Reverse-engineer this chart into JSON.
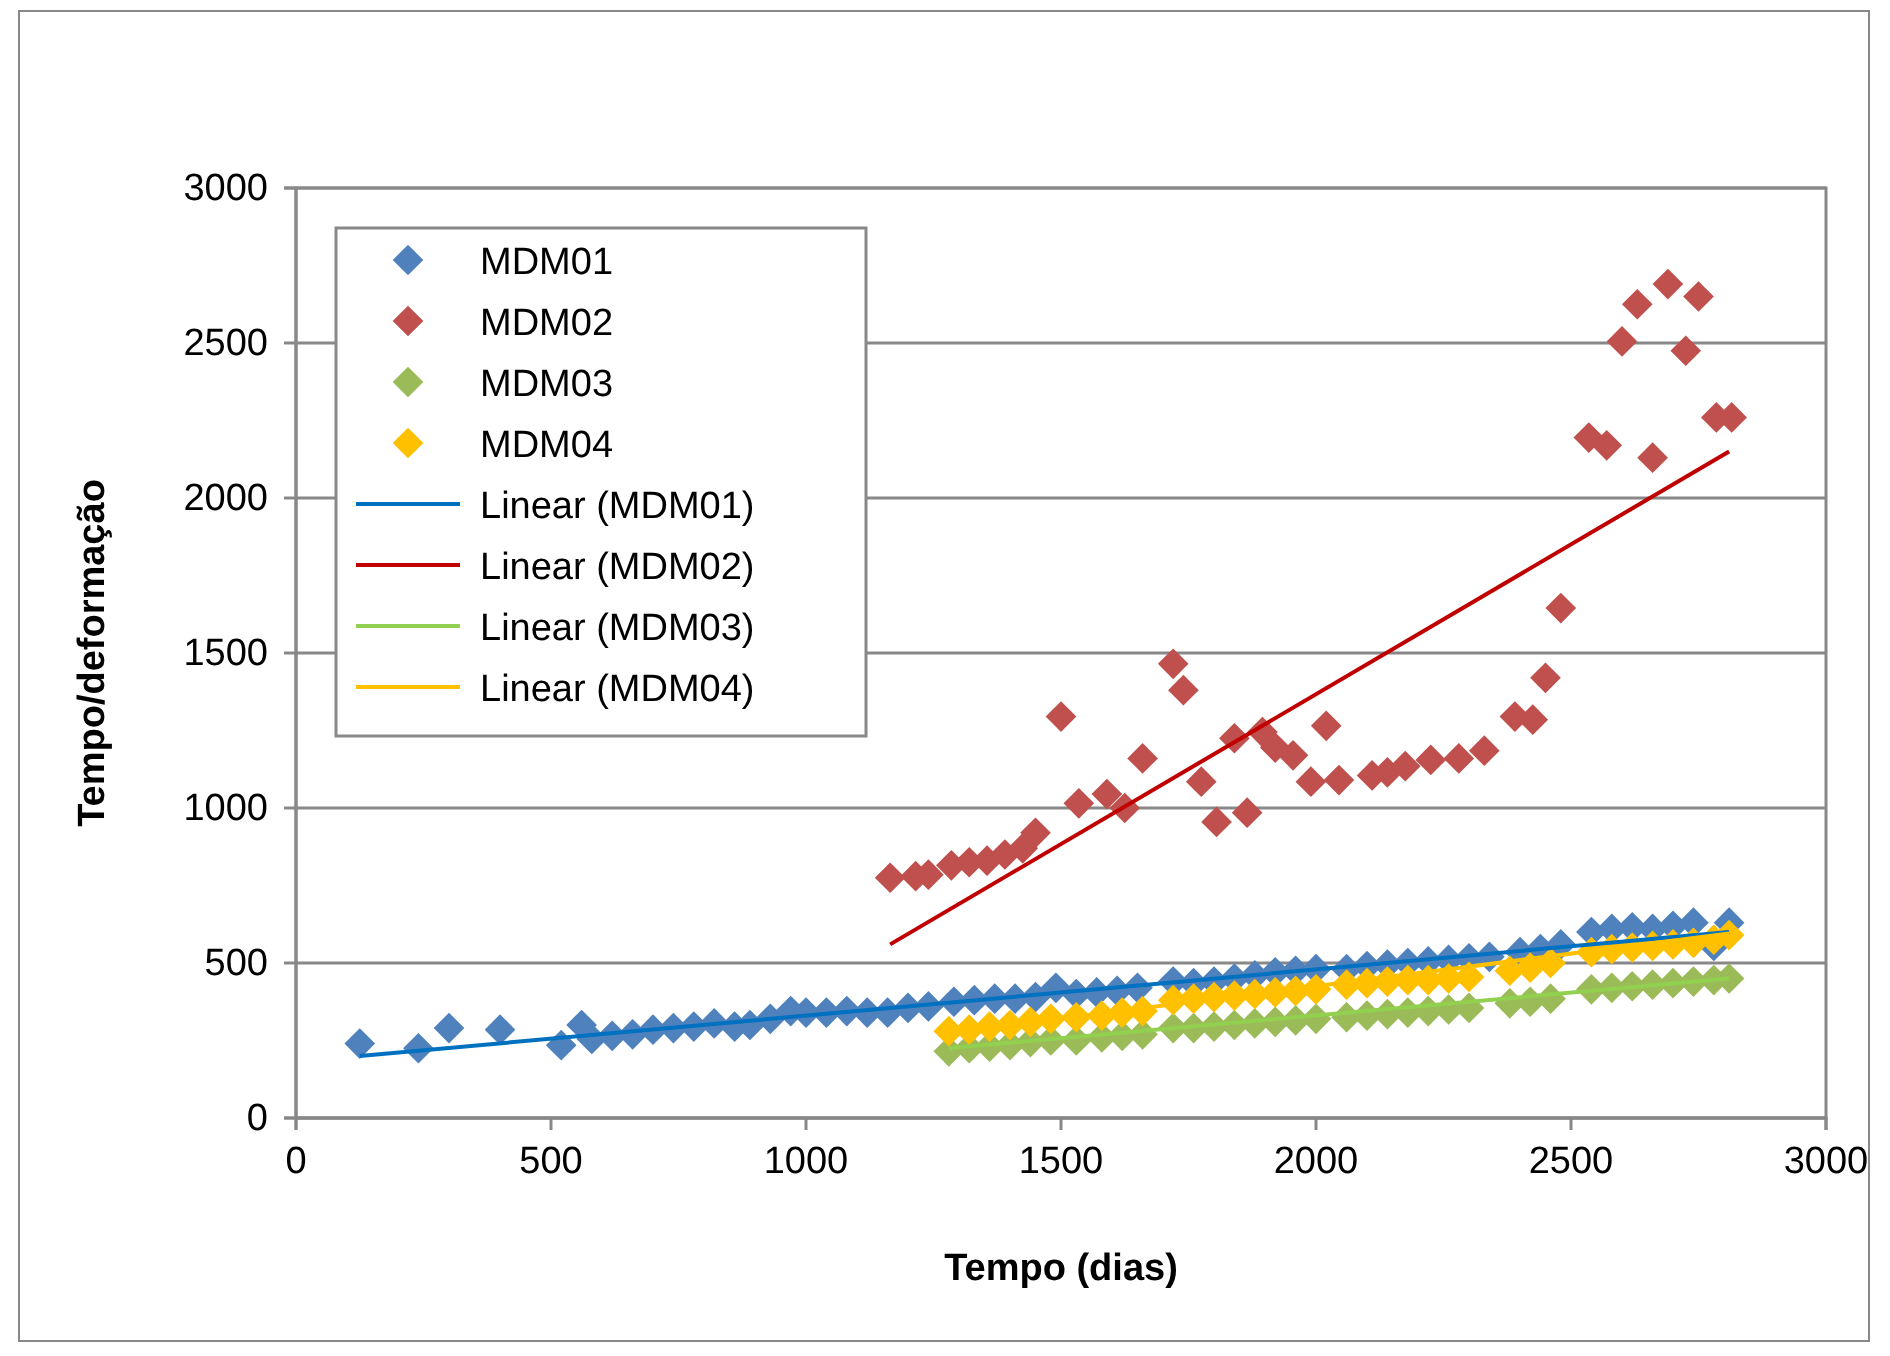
{
  "chart_data": {
    "type": "scatter",
    "xlabel": "Tempo (dias)",
    "ylabel": "Tempo/deformação",
    "xlim": [
      0,
      3000
    ],
    "ylim": [
      0,
      3000
    ],
    "xticks": [
      0,
      500,
      1000,
      1500,
      2000,
      2500,
      3000
    ],
    "yticks": [
      0,
      500,
      1000,
      1500,
      2000,
      2500,
      3000
    ],
    "grid": "y",
    "legend": "top left",
    "marker": "diamond",
    "series": [
      {
        "name": "MDM01",
        "color": "#4f81bd",
        "x": [
          125,
          240,
          300,
          400,
          520,
          560,
          580,
          620,
          660,
          700,
          740,
          780,
          820,
          860,
          890,
          930,
          970,
          1000,
          1040,
          1080,
          1120,
          1160,
          1200,
          1240,
          1290,
          1330,
          1370,
          1410,
          1450,
          1490,
          1530,
          1570,
          1610,
          1650,
          1720,
          1760,
          1800,
          1840,
          1880,
          1920,
          1960,
          2000,
          2060,
          2100,
          2140,
          2180,
          2220,
          2260,
          2300,
          2340,
          2400,
          2440,
          2480,
          2540,
          2580,
          2620,
          2660,
          2700,
          2740,
          2780,
          2810
        ],
        "values": [
          240,
          225,
          290,
          285,
          235,
          300,
          255,
          265,
          270,
          285,
          290,
          295,
          305,
          295,
          300,
          320,
          345,
          340,
          340,
          345,
          340,
          340,
          355,
          360,
          375,
          380,
          385,
          385,
          390,
          420,
          400,
          405,
          410,
          420,
          440,
          435,
          440,
          450,
          460,
          470,
          475,
          480,
          480,
          490,
          495,
          500,
          505,
          510,
          515,
          520,
          535,
          545,
          560,
          600,
          610,
          615,
          610,
          620,
          630,
          555,
          630
        ]
      },
      {
        "name": "MDM02",
        "color": "#c0504d",
        "x": [
          1165,
          1215,
          1240,
          1285,
          1320,
          1355,
          1390,
          1425,
          1450,
          1500,
          1535,
          1590,
          1625,
          1660,
          1720,
          1740,
          1775,
          1805,
          1840,
          1865,
          1895,
          1920,
          1955,
          1990,
          2020,
          2045,
          2110,
          2140,
          2175,
          2225,
          2280,
          2330,
          2390,
          2425,
          2450,
          2480,
          2535,
          2570,
          2600,
          2630,
          2660,
          2690,
          2725,
          2750,
          2785,
          2815
        ],
        "values": [
          775,
          780,
          785,
          815,
          825,
          830,
          850,
          870,
          920,
          1295,
          1015,
          1045,
          1000,
          1160,
          1465,
          1380,
          1085,
          955,
          1225,
          985,
          1245,
          1195,
          1170,
          1085,
          1265,
          1090,
          1105,
          1115,
          1135,
          1155,
          1160,
          1185,
          1295,
          1285,
          1420,
          1645,
          2195,
          2170,
          2505,
          2625,
          2130,
          2690,
          2475,
          2650,
          2260,
          2260
        ]
      },
      {
        "name": "MDM03",
        "color": "#9bbb59",
        "x": [
          1280,
          1320,
          1360,
          1400,
          1440,
          1480,
          1530,
          1580,
          1620,
          1660,
          1720,
          1760,
          1800,
          1840,
          1880,
          1920,
          1960,
          2000,
          2060,
          2100,
          2140,
          2180,
          2220,
          2260,
          2300,
          2380,
          2420,
          2460,
          2540,
          2580,
          2620,
          2660,
          2700,
          2740,
          2780,
          2810
        ],
        "values": [
          215,
          225,
          230,
          235,
          245,
          250,
          250,
          260,
          265,
          270,
          290,
          290,
          295,
          300,
          305,
          310,
          315,
          320,
          325,
          330,
          335,
          340,
          345,
          350,
          355,
          370,
          375,
          385,
          415,
          420,
          425,
          430,
          435,
          440,
          445,
          450
        ]
      },
      {
        "name": "MDM04",
        "color": "#ffc000",
        "x": [
          1280,
          1320,
          1360,
          1400,
          1440,
          1480,
          1530,
          1580,
          1620,
          1660,
          1720,
          1760,
          1800,
          1840,
          1880,
          1920,
          1960,
          2000,
          2060,
          2100,
          2140,
          2180,
          2220,
          2260,
          2300,
          2380,
          2420,
          2460,
          2540,
          2580,
          2620,
          2660,
          2700,
          2740,
          2780,
          2810
        ],
        "values": [
          280,
          285,
          295,
          300,
          310,
          320,
          325,
          330,
          340,
          345,
          380,
          385,
          390,
          395,
          400,
          405,
          410,
          415,
          430,
          435,
          440,
          445,
          445,
          450,
          455,
          475,
          485,
          500,
          535,
          545,
          550,
          555,
          560,
          565,
          575,
          590
        ]
      },
      {
        "name": "Linear (MDM01)",
        "type": "line",
        "marker": "none",
        "color": "#0070c0",
        "x": [
          125,
          2810
        ],
        "values": [
          200,
          600
        ]
      },
      {
        "name": "Linear (MDM02)",
        "type": "line",
        "marker": "none",
        "color": "#c00000",
        "x": [
          1165,
          2810
        ],
        "values": [
          560,
          2150
        ]
      },
      {
        "name": "Linear (MDM03)",
        "type": "line",
        "marker": "none",
        "color": "#92d050",
        "x": [
          1280,
          2810
        ],
        "values": [
          225,
          450
        ]
      },
      {
        "name": "Linear (MDM04)",
        "type": "line",
        "marker": "none",
        "color": "#ffc000",
        "x": [
          1280,
          2810
        ],
        "values": [
          275,
          595
        ]
      }
    ]
  }
}
